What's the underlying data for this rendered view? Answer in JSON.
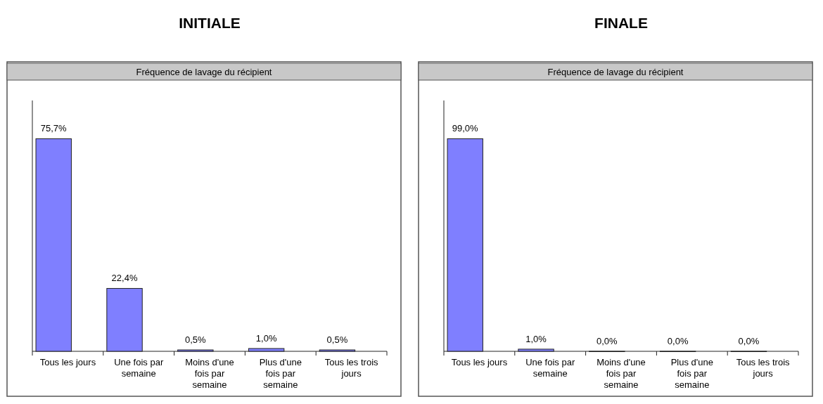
{
  "chart_data": [
    {
      "type": "bar",
      "title": "INITIALE",
      "subtitle": "Fréquence de lavage du récipient",
      "categories": [
        "Tous les jours",
        "Une fois par semaine",
        "Moins d'une fois par semaine",
        "Plus d'une fois par semaine",
        "Tous les trois jours"
      ],
      "values": [
        75.7,
        22.4,
        0.5,
        1.0,
        0.5
      ],
      "value_labels": [
        "75,7%",
        "22,4%",
        "0,5%",
        "1,0%",
        "0,5%"
      ],
      "color": "#7f7fff"
    },
    {
      "type": "bar",
      "title": "FINALE",
      "subtitle": "Fréquence de lavage du récipient",
      "categories": [
        "Tous les jours",
        "Une fois par semaine",
        "Moins d'une fois par semaine",
        "Plus d'une fois par semaine",
        "Tous les trois jours"
      ],
      "values": [
        99.0,
        1.0,
        0.0,
        0.0,
        0.0
      ],
      "value_labels": [
        "99,0%",
        "1,0%",
        "0,0%",
        "0,0%",
        "0,0%"
      ],
      "color": "#7f7fff"
    }
  ]
}
